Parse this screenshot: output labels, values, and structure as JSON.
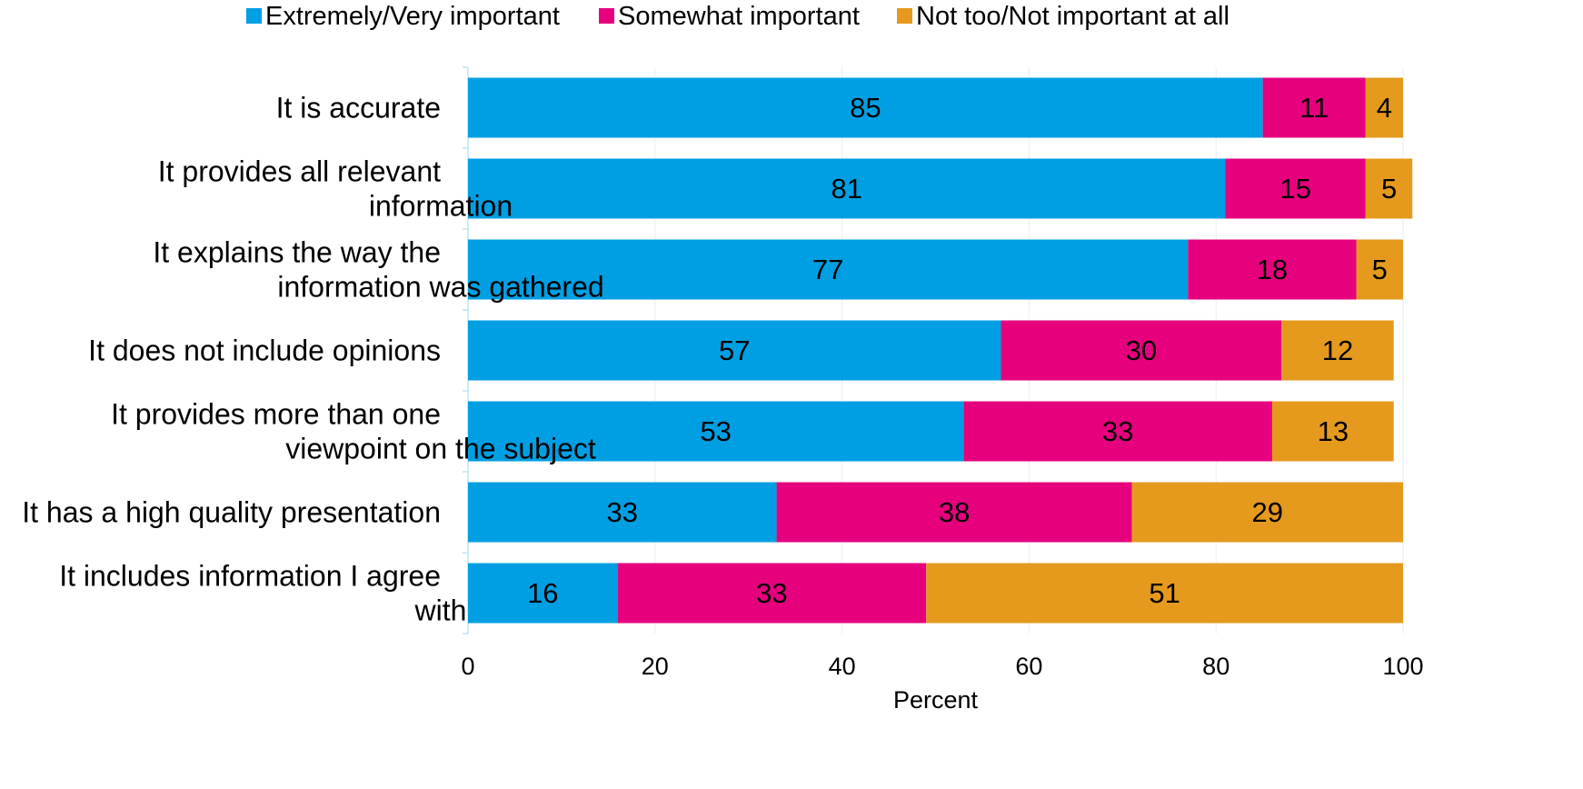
{
  "chart_data": {
    "type": "bar",
    "orientation": "horizontal",
    "stacked": true,
    "categories": [
      "It is accurate",
      "It provides all relevant information",
      "It explains the way the information was gathered",
      "It does not include opinions",
      "It provides more than one viewpoint on the subject",
      "It has a high quality presentation",
      "It includes information I agree with"
    ],
    "category_label_lines": [
      [
        "It is accurate"
      ],
      [
        "It provides all relevant",
        "information"
      ],
      [
        "It explains the way the",
        "information was gathered"
      ],
      [
        "It does not include opinions"
      ],
      [
        "It provides more than one",
        "viewpoint on the subject"
      ],
      [
        "It has a high quality presentation"
      ],
      [
        "It includes information I agree",
        "with"
      ]
    ],
    "series": [
      {
        "name": "Extremely/Very important",
        "color": "#009FE3",
        "values": [
          85,
          81,
          77,
          57,
          53,
          33,
          16
        ]
      },
      {
        "name": "Somewhat important",
        "color": "#E6007E",
        "values": [
          11,
          15,
          18,
          30,
          33,
          38,
          33
        ]
      },
      {
        "name": "Not too/Not important at all",
        "color": "#E59A1E",
        "values": [
          4,
          5,
          5,
          12,
          13,
          29,
          51
        ]
      }
    ],
    "xlabel": "Percent",
    "ylabel": "",
    "xlim": [
      0,
      100
    ],
    "xticks": [
      0,
      20,
      40,
      60,
      80,
      100
    ],
    "grid": true,
    "legend_position": "top"
  }
}
